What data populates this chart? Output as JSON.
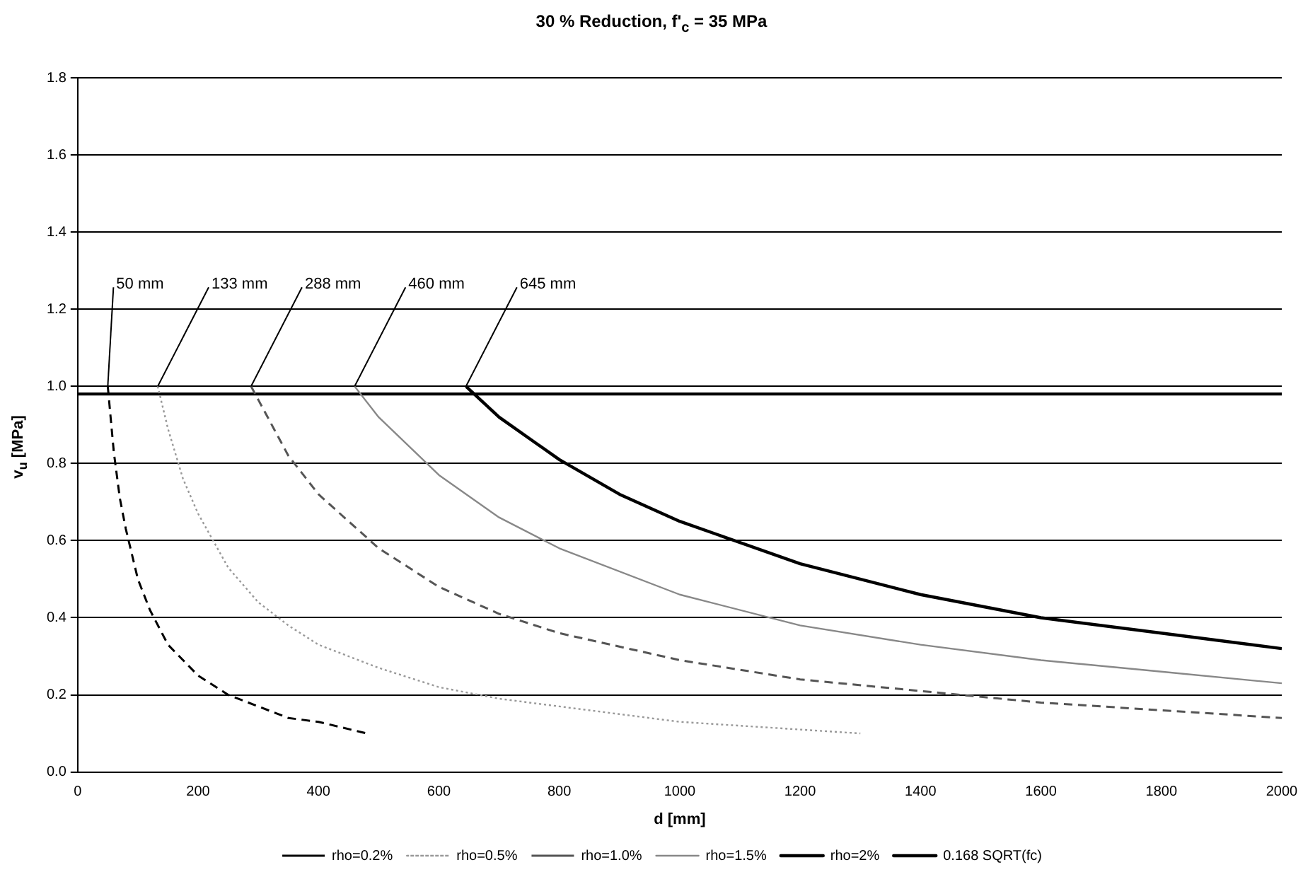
{
  "chart_data": {
    "type": "line",
    "title": "30 % Reduction, f'$_{c}$ = 35 MPa",
    "xlabel": "d [mm]",
    "ylabel": "v$_{u}$ [MPa]",
    "xlim": [
      0,
      2000
    ],
    "xticks": [
      0,
      200,
      400,
      600,
      800,
      1000,
      1200,
      1400,
      1600,
      1800,
      2000
    ],
    "ylim": [
      0,
      1.8
    ],
    "yticks": [
      {
        "value": 0,
        "label": "0.0"
      },
      {
        "value": 0.2,
        "label": "0.2"
      },
      {
        "value": 0.4,
        "label": "0.4"
      },
      {
        "value": 0.6,
        "label": "0.6"
      },
      {
        "value": 0.8,
        "label": "0.8"
      },
      {
        "value": 1,
        "label": "1.0"
      },
      {
        "value": 1.2,
        "label": "1.2"
      },
      {
        "value": 1.4,
        "label": "1.4"
      },
      {
        "value": 1.6,
        "label": "1.6"
      },
      {
        "value": 1.8,
        "label": "1.8"
      }
    ],
    "grid": "y",
    "legend": "bottom",
    "marker": "none",
    "series": [
      {
        "name": "rho=0.2%",
        "color": "#000000",
        "line_style": "dashed",
        "x": [
          50,
          60,
          70,
          80,
          100,
          120,
          150,
          200,
          250,
          300,
          350,
          400,
          480
        ],
        "values": [
          1.0,
          0.83,
          0.71,
          0.63,
          0.5,
          0.42,
          0.33,
          0.25,
          0.2,
          0.17,
          0.14,
          0.13,
          0.1
        ]
      },
      {
        "name": "rho=0.5%",
        "color": "#999999",
        "line_style": "dotted",
        "x": [
          133,
          150,
          175,
          200,
          250,
          300,
          350,
          400,
          500,
          600,
          700,
          800,
          900,
          1000,
          1100,
          1200,
          1300
        ],
        "values": [
          1.0,
          0.89,
          0.76,
          0.67,
          0.53,
          0.44,
          0.38,
          0.33,
          0.27,
          0.22,
          0.19,
          0.17,
          0.15,
          0.13,
          0.12,
          0.11,
          0.1
        ]
      },
      {
        "name": "rho=1.0%",
        "color": "#555555",
        "line_style": "dashed",
        "x": [
          288,
          350,
          400,
          500,
          600,
          700,
          800,
          1000,
          1200,
          1400,
          1600,
          1800,
          2000
        ],
        "values": [
          1.0,
          0.82,
          0.72,
          0.58,
          0.48,
          0.41,
          0.36,
          0.29,
          0.24,
          0.21,
          0.18,
          0.16,
          0.14
        ]
      },
      {
        "name": "rho=1.5%",
        "color": "#888888",
        "line_style": "solid",
        "x": [
          460,
          500,
          600,
          700,
          800,
          1000,
          1200,
          1400,
          1600,
          1800,
          2000
        ],
        "values": [
          1.0,
          0.92,
          0.77,
          0.66,
          0.58,
          0.46,
          0.38,
          0.33,
          0.29,
          0.26,
          0.23
        ]
      },
      {
        "name": "rho=2%",
        "color": "#000000",
        "line_style": "solid",
        "x": [
          645,
          700,
          800,
          900,
          1000,
          1200,
          1400,
          1600,
          1800,
          2000
        ],
        "values": [
          1.0,
          0.92,
          0.81,
          0.72,
          0.65,
          0.54,
          0.46,
          0.4,
          0.36,
          0.32
        ]
      },
      {
        "name": "0.168 SQRT(fc)",
        "color": "#000000",
        "line_style": "solid",
        "x": [
          0,
          2000
        ],
        "values": [
          0.98,
          0.98
        ]
      }
    ],
    "annotations": [
      {
        "text": "50 mm",
        "x": 50,
        "y": 1.0
      },
      {
        "text": "133 mm",
        "x": 133,
        "y": 1.0
      },
      {
        "text": "288 mm",
        "x": 288,
        "y": 1.0
      },
      {
        "text": "460 mm",
        "x": 460,
        "y": 1.0
      },
      {
        "text": "645 mm",
        "x": 645,
        "y": 1.0
      }
    ]
  }
}
